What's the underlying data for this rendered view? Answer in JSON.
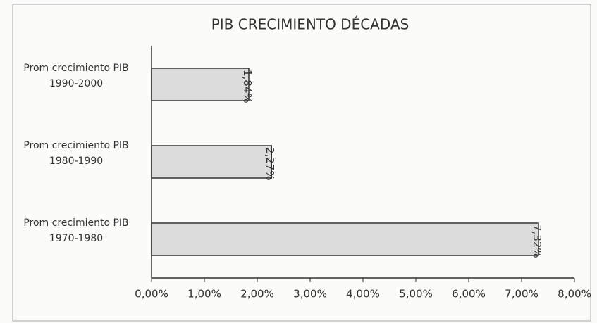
{
  "chart_data": {
    "type": "barh",
    "title": "PIB CRECIMIENTO DÉCADAS",
    "categories": [
      "Prom crecimiento PIB 1990-2000",
      "Prom crecimiento PIB 1980-1990",
      "Prom crecimiento PIB 1970-1980"
    ],
    "values": [
      1.84,
      2.27,
      7.32
    ],
    "value_labels": [
      "1,84%",
      "2,27%",
      "7,32%"
    ],
    "color": "#dcdcdc",
    "xlim": [
      0,
      8
    ],
    "xticks": [
      {
        "value": 0,
        "label": "0,00%"
      },
      {
        "value": 1,
        "label": "1,00%"
      },
      {
        "value": 2,
        "label": "2,00%"
      },
      {
        "value": 3,
        "label": "3,00%"
      },
      {
        "value": 4,
        "label": "4,00%"
      },
      {
        "value": 5,
        "label": "5,00%"
      },
      {
        "value": 6,
        "label": "6,00%"
      },
      {
        "value": 7,
        "label": "7,00%"
      },
      {
        "value": 8,
        "label": "8,00%"
      }
    ]
  }
}
